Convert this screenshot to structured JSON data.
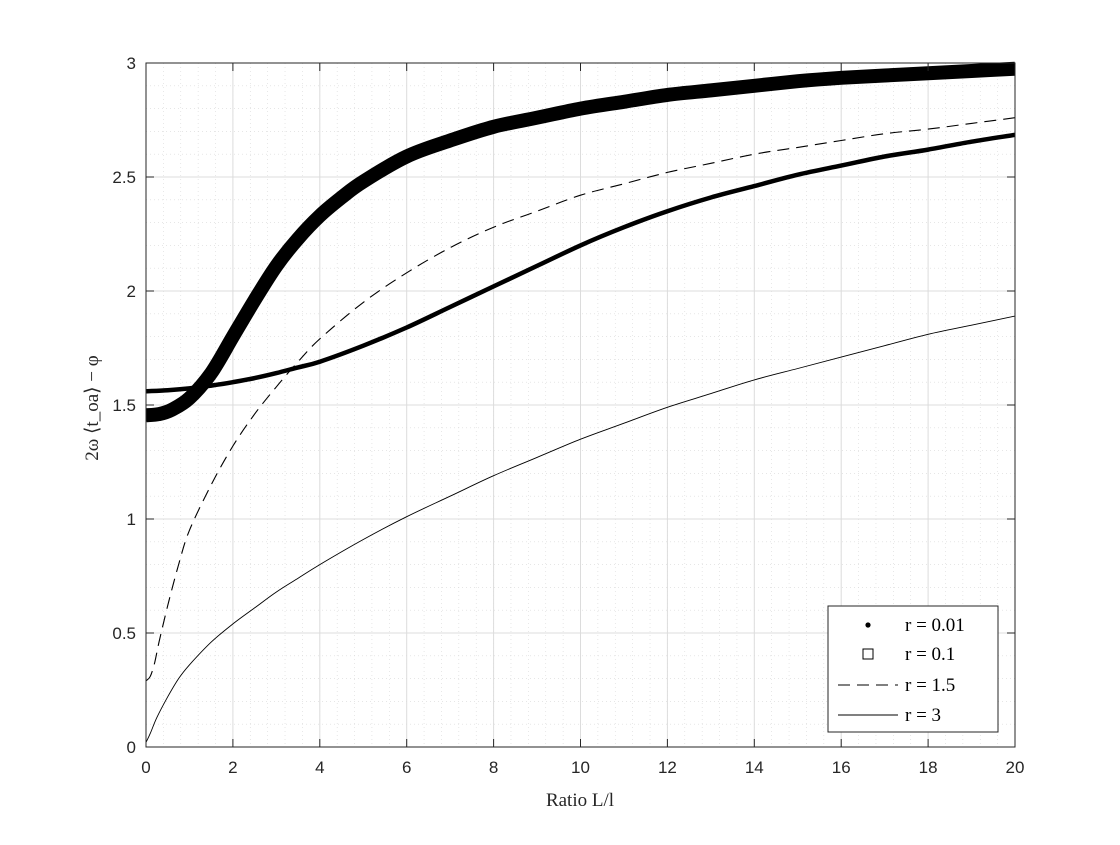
{
  "chart_data": {
    "type": "line",
    "title": "",
    "xlabel": "Ratio L/l",
    "ylabel": "2ω ⟨t_oa⟩ − φ",
    "xlim": [
      0,
      20
    ],
    "ylim": [
      0,
      3
    ],
    "xticks": [
      "0",
      "2",
      "4",
      "6",
      "8",
      "10",
      "12",
      "14",
      "16",
      "18",
      "20"
    ],
    "yticks": [
      "0",
      "0.5",
      "1",
      "1.5",
      "2",
      "2.5",
      "3"
    ],
    "grid": "major and minor",
    "legend_position": "bottom-right",
    "series": [
      {
        "name": "r = 0.01",
        "marker": "dot",
        "x": [
          0,
          0.5,
          1,
          1.5,
          2,
          2.5,
          3,
          3.5,
          4,
          5,
          6,
          7,
          8,
          9,
          10,
          11,
          12,
          13,
          14,
          15,
          16,
          17,
          18,
          19,
          20
        ],
        "y": [
          1.56,
          1.565,
          1.573,
          1.585,
          1.6,
          1.618,
          1.64,
          1.665,
          1.69,
          1.76,
          1.84,
          1.93,
          2.02,
          2.11,
          2.2,
          2.28,
          2.35,
          2.41,
          2.46,
          2.51,
          2.55,
          2.59,
          2.62,
          2.655,
          2.685
        ]
      },
      {
        "name": "r = 0.1",
        "marker": "square",
        "x": [
          0,
          0.3,
          0.6,
          1,
          1.5,
          2,
          2.5,
          3,
          3.5,
          4,
          4.5,
          5,
          6,
          7,
          8,
          9,
          10,
          11,
          12,
          13,
          14,
          15,
          16,
          17,
          18,
          19,
          20
        ],
        "y": [
          1.455,
          1.46,
          1.48,
          1.53,
          1.64,
          1.8,
          1.96,
          2.11,
          2.23,
          2.33,
          2.41,
          2.48,
          2.59,
          2.66,
          2.72,
          2.76,
          2.8,
          2.83,
          2.86,
          2.88,
          2.9,
          2.92,
          2.935,
          2.945,
          2.955,
          2.965,
          2.975
        ]
      },
      {
        "name": "r = 1.5",
        "marker": "dashed",
        "x": [
          0,
          0.1,
          0.2,
          0.3,
          0.5,
          0.75,
          1,
          1.5,
          2,
          2.5,
          3,
          3.5,
          4,
          5,
          6,
          7,
          8,
          9,
          10,
          11,
          12,
          13,
          14,
          15,
          16,
          17,
          18,
          19,
          20
        ],
        "y": [
          0.29,
          0.31,
          0.37,
          0.46,
          0.62,
          0.8,
          0.95,
          1.15,
          1.32,
          1.46,
          1.58,
          1.69,
          1.79,
          1.95,
          2.08,
          2.19,
          2.28,
          2.35,
          2.42,
          2.47,
          2.52,
          2.56,
          2.6,
          2.63,
          2.66,
          2.69,
          2.71,
          2.735,
          2.76
        ]
      },
      {
        "name": "r = 3",
        "marker": "solid",
        "x": [
          0,
          0.1,
          0.25,
          0.5,
          0.75,
          1,
          1.5,
          2,
          2.5,
          3,
          3.5,
          4,
          5,
          6,
          7,
          8,
          9,
          10,
          11,
          12,
          13,
          14,
          15,
          16,
          17,
          18,
          19,
          20
        ],
        "y": [
          0.02,
          0.06,
          0.13,
          0.22,
          0.3,
          0.36,
          0.46,
          0.54,
          0.61,
          0.68,
          0.74,
          0.8,
          0.91,
          1.01,
          1.1,
          1.19,
          1.27,
          1.35,
          1.42,
          1.49,
          1.55,
          1.61,
          1.66,
          1.71,
          1.76,
          1.81,
          1.85,
          1.89
        ]
      }
    ]
  }
}
